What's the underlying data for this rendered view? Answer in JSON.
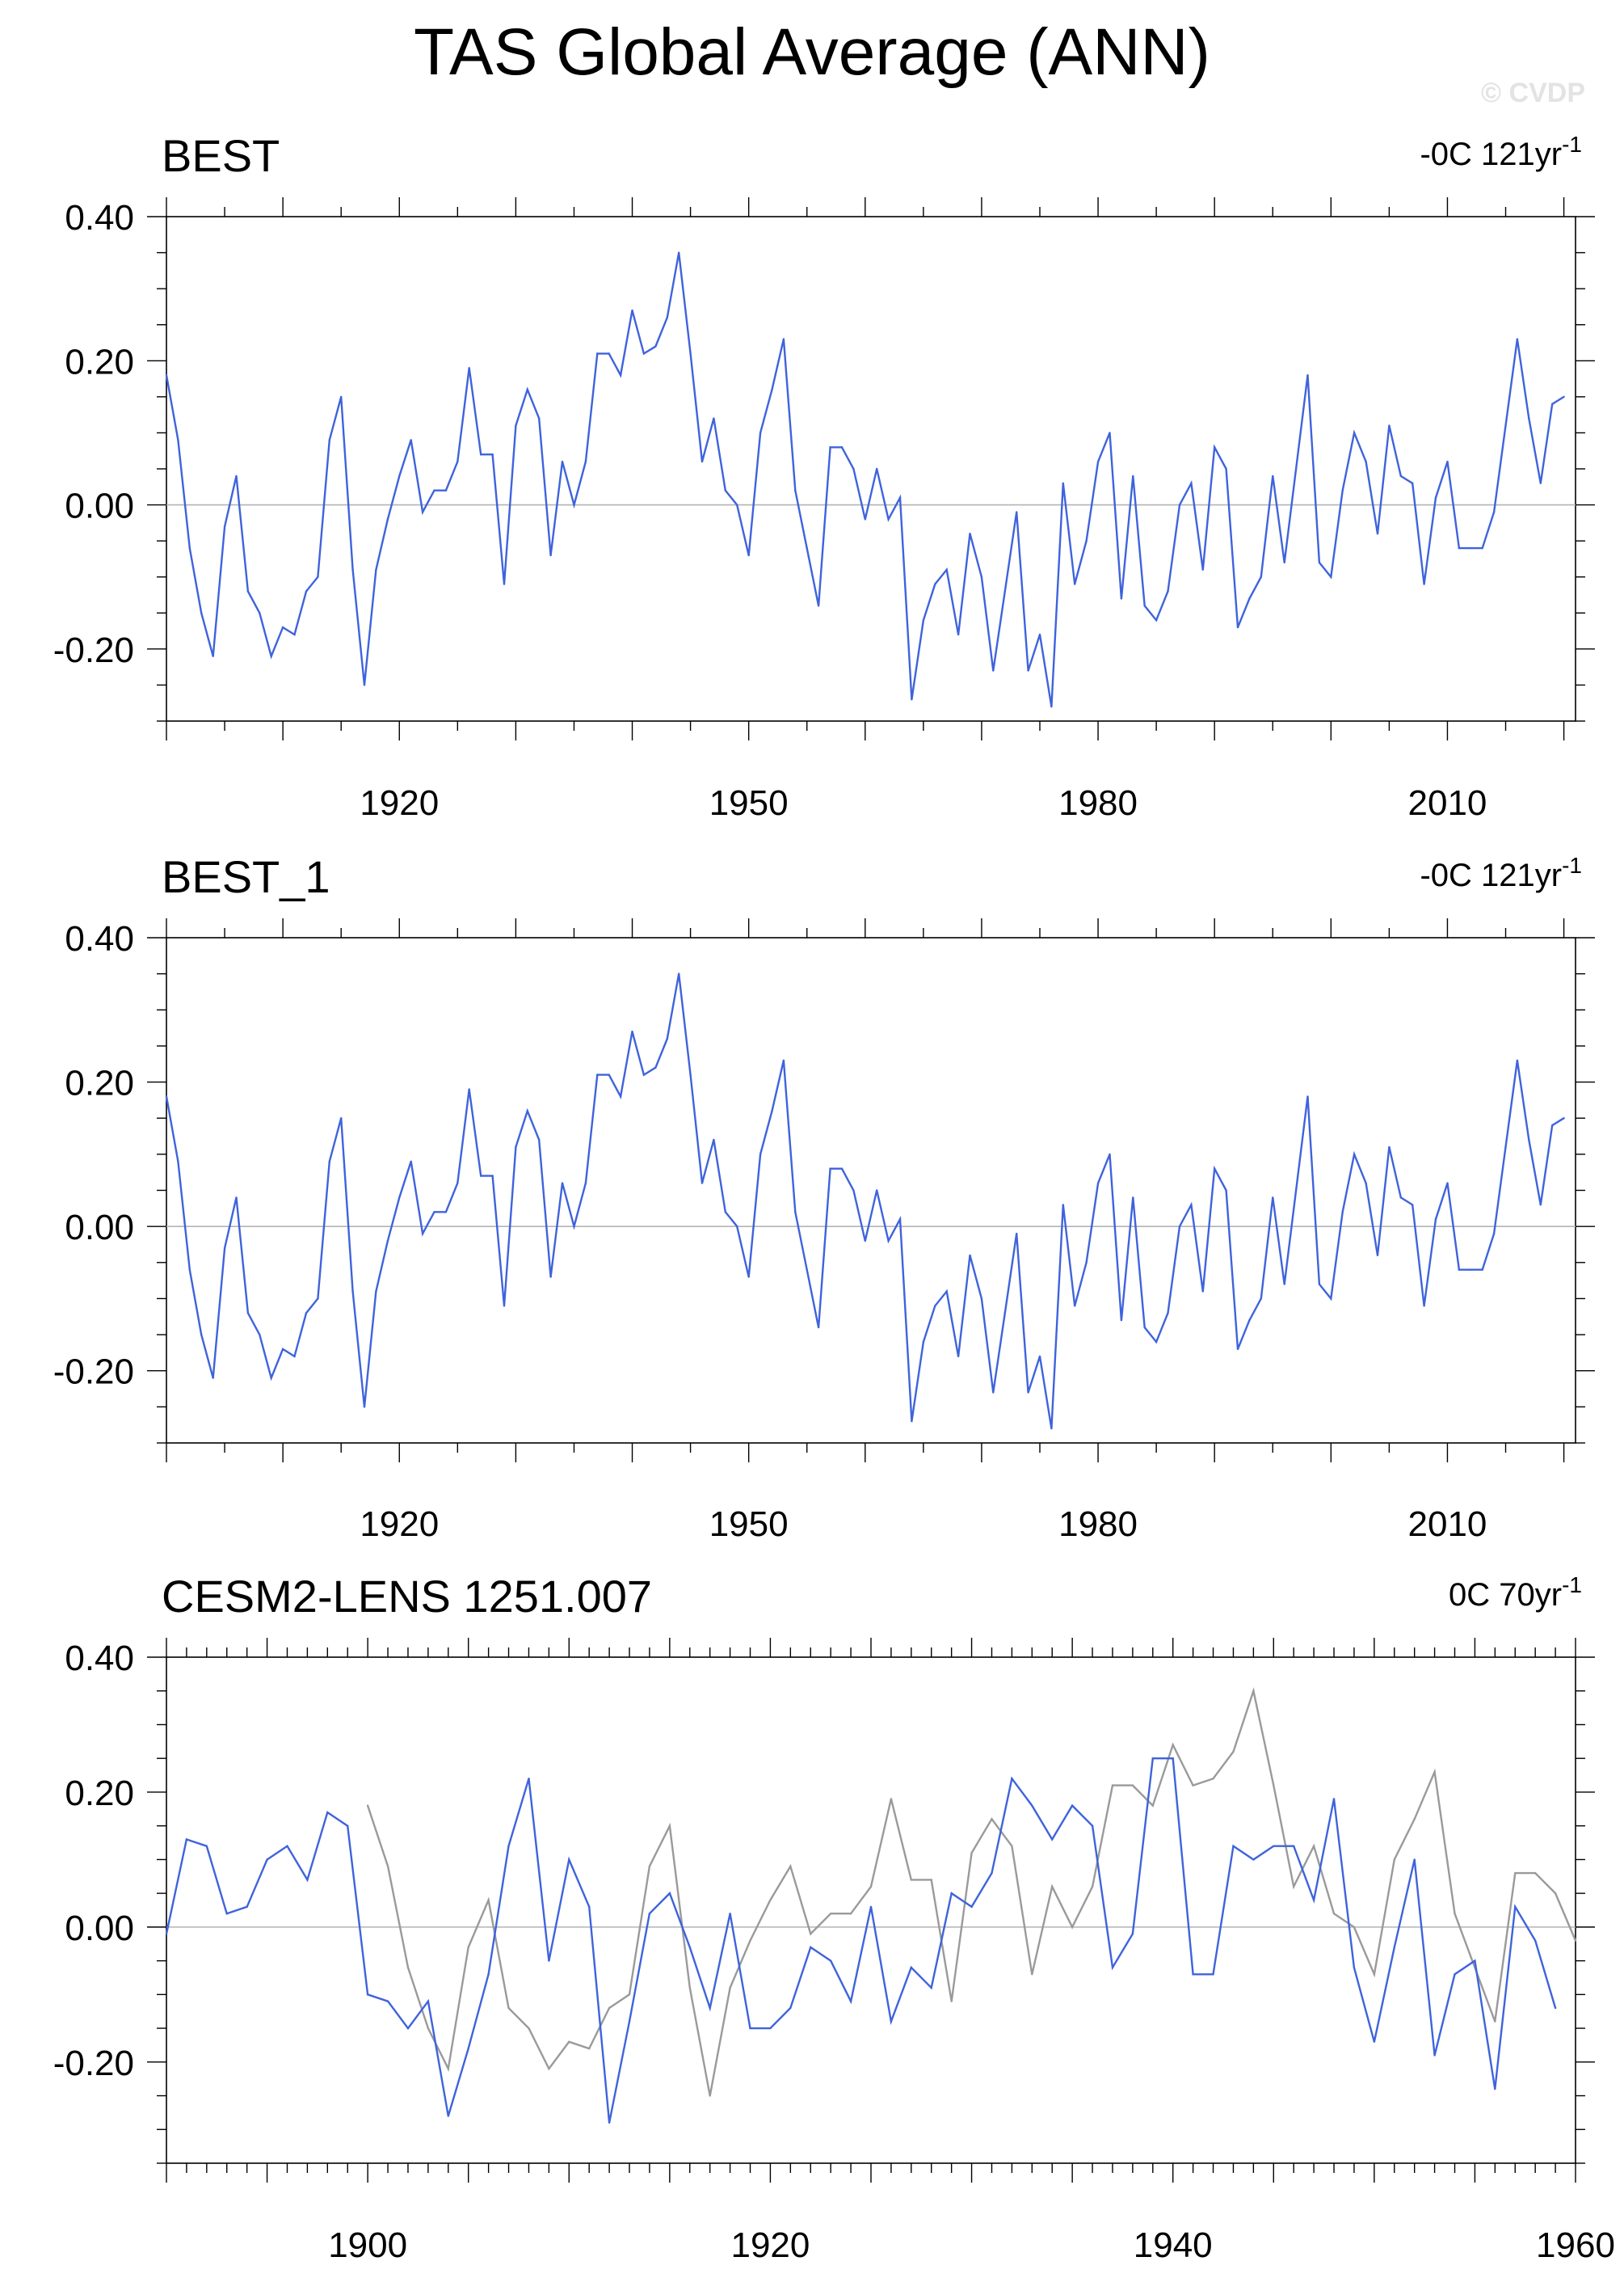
{
  "page": {
    "title": "TAS Global Average (ANN)",
    "watermark": "© CVDP"
  },
  "colors": {
    "blue": "#3f63dc",
    "gray": "#9a9a9a",
    "zero_line": "#b4b4b4",
    "axis": "#000000"
  },
  "chart_data": [
    {
      "type": "line",
      "title": "BEST",
      "annotation": {
        "prefix": "-0C 121yr",
        "sup": "-1"
      },
      "x_range": [
        1900,
        2021
      ],
      "ylim": [
        -0.3,
        0.4
      ],
      "y_ticks": [
        "0.40",
        "0.20",
        "0.00",
        "-0.20"
      ],
      "x_ticks": [
        "1920",
        "1950",
        "1980",
        "2010"
      ],
      "series": [
        {
          "color": "blue",
          "x_start": 1900,
          "values": [
            0.18,
            0.09,
            -0.06,
            -0.15,
            -0.21,
            -0.03,
            0.04,
            -0.12,
            -0.15,
            -0.21,
            -0.17,
            -0.18,
            -0.12,
            -0.1,
            0.09,
            0.15,
            -0.09,
            -0.25,
            -0.09,
            -0.02,
            0.04,
            0.09,
            -0.01,
            0.02,
            0.02,
            0.06,
            0.19,
            0.07,
            0.07,
            -0.11,
            0.11,
            0.16,
            0.12,
            -0.07,
            0.06,
            0.0,
            0.06,
            0.21,
            0.21,
            0.18,
            0.27,
            0.21,
            0.22,
            0.26,
            0.35,
            0.21,
            0.06,
            0.12,
            0.02,
            0.0,
            -0.07,
            0.1,
            0.16,
            0.23,
            0.02,
            -0.06,
            -0.14,
            0.08,
            0.08,
            0.05,
            -0.02,
            0.05,
            -0.02,
            0.01,
            -0.27,
            -0.16,
            -0.11,
            -0.09,
            -0.18,
            -0.04,
            -0.1,
            -0.23,
            -0.12,
            -0.01,
            -0.23,
            -0.18,
            -0.28,
            0.03,
            -0.11,
            -0.05,
            0.06,
            0.1,
            -0.13,
            0.04,
            -0.14,
            -0.16,
            -0.12,
            0.0,
            0.03,
            -0.09,
            0.08,
            0.05,
            -0.17,
            -0.13,
            -0.1,
            0.04,
            -0.08,
            0.05,
            0.18,
            -0.08,
            -0.1,
            0.02,
            0.1,
            0.06,
            -0.04,
            0.11,
            0.04,
            0.03,
            -0.11,
            0.01,
            0.06,
            -0.06,
            -0.06,
            -0.06,
            -0.01,
            0.11,
            0.23,
            0.12,
            0.03,
            0.14,
            0.15
          ]
        }
      ]
    },
    {
      "type": "line",
      "title": "BEST_1",
      "annotation": {
        "prefix": "-0C 121yr",
        "sup": "-1"
      },
      "x_range": [
        1900,
        2021
      ],
      "ylim": [
        -0.3,
        0.4
      ],
      "y_ticks": [
        "0.40",
        "0.20",
        "0.00",
        "-0.20"
      ],
      "x_ticks": [
        "1920",
        "1950",
        "1980",
        "2010"
      ],
      "series": [
        {
          "color": "blue",
          "x_start": 1900,
          "values": [
            0.18,
            0.09,
            -0.06,
            -0.15,
            -0.21,
            -0.03,
            0.04,
            -0.12,
            -0.15,
            -0.21,
            -0.17,
            -0.18,
            -0.12,
            -0.1,
            0.09,
            0.15,
            -0.09,
            -0.25,
            -0.09,
            -0.02,
            0.04,
            0.09,
            -0.01,
            0.02,
            0.02,
            0.06,
            0.19,
            0.07,
            0.07,
            -0.11,
            0.11,
            0.16,
            0.12,
            -0.07,
            0.06,
            0.0,
            0.06,
            0.21,
            0.21,
            0.18,
            0.27,
            0.21,
            0.22,
            0.26,
            0.35,
            0.21,
            0.06,
            0.12,
            0.02,
            0.0,
            -0.07,
            0.1,
            0.16,
            0.23,
            0.02,
            -0.06,
            -0.14,
            0.08,
            0.08,
            0.05,
            -0.02,
            0.05,
            -0.02,
            0.01,
            -0.27,
            -0.16,
            -0.11,
            -0.09,
            -0.18,
            -0.04,
            -0.1,
            -0.23,
            -0.12,
            -0.01,
            -0.23,
            -0.18,
            -0.28,
            0.03,
            -0.11,
            -0.05,
            0.06,
            0.1,
            -0.13,
            0.04,
            -0.14,
            -0.16,
            -0.12,
            0.0,
            0.03,
            -0.09,
            0.08,
            0.05,
            -0.17,
            -0.13,
            -0.1,
            0.04,
            -0.08,
            0.05,
            0.18,
            -0.08,
            -0.1,
            0.02,
            0.1,
            0.06,
            -0.04,
            0.11,
            0.04,
            0.03,
            -0.11,
            0.01,
            0.06,
            -0.06,
            -0.06,
            -0.06,
            -0.01,
            0.11,
            0.23,
            0.12,
            0.03,
            0.14,
            0.15
          ]
        }
      ]
    },
    {
      "type": "line",
      "title": "CESM2-LENS 1251.007",
      "annotation": {
        "prefix": "0C 70yr",
        "sup": "-1"
      },
      "x_range": [
        1890,
        1960
      ],
      "ylim": [
        -0.35,
        0.4
      ],
      "y_ticks": [
        "0.40",
        "0.20",
        "0.00",
        "-0.20"
      ],
      "x_ticks": [
        "1900",
        "1920",
        "1940",
        "1960"
      ],
      "series": [
        {
          "color": "gray",
          "x_start": 1900,
          "values": [
            0.18,
            0.09,
            -0.06,
            -0.15,
            -0.21,
            -0.03,
            0.04,
            -0.12,
            -0.15,
            -0.21,
            -0.17,
            -0.18,
            -0.12,
            -0.1,
            0.09,
            0.15,
            -0.09,
            -0.25,
            -0.09,
            -0.02,
            0.04,
            0.09,
            -0.01,
            0.02,
            0.02,
            0.06,
            0.19,
            0.07,
            0.07,
            -0.11,
            0.11,
            0.16,
            0.12,
            -0.07,
            0.06,
            0.0,
            0.06,
            0.21,
            0.21,
            0.18,
            0.27,
            0.21,
            0.22,
            0.26,
            0.35,
            0.21,
            0.06,
            0.12,
            0.02,
            0.0,
            -0.07,
            0.1,
            0.16,
            0.23,
            0.02,
            -0.06,
            -0.14,
            0.08,
            0.08,
            0.05,
            -0.02
          ]
        },
        {
          "color": "blue",
          "x_start": 1890,
          "values": [
            -0.01,
            0.13,
            0.12,
            0.02,
            0.03,
            0.1,
            0.12,
            0.07,
            0.17,
            0.15,
            -0.1,
            -0.11,
            -0.15,
            -0.11,
            -0.28,
            -0.18,
            -0.07,
            0.12,
            0.22,
            -0.05,
            0.1,
            0.03,
            -0.29,
            -0.14,
            0.02,
            0.05,
            -0.03,
            -0.12,
            0.02,
            -0.15,
            -0.15,
            -0.12,
            -0.03,
            -0.05,
            -0.11,
            0.03,
            -0.14,
            -0.06,
            -0.09,
            0.05,
            0.03,
            0.08,
            0.22,
            0.18,
            0.13,
            0.18,
            0.15,
            -0.06,
            -0.01,
            0.25,
            0.25,
            -0.07,
            -0.07,
            0.12,
            0.1,
            0.12,
            0.12,
            0.04,
            0.19,
            -0.06,
            -0.17,
            -0.03,
            0.1,
            -0.19,
            -0.07,
            -0.05,
            -0.24,
            0.03,
            -0.02,
            -0.12
          ]
        }
      ]
    }
  ]
}
